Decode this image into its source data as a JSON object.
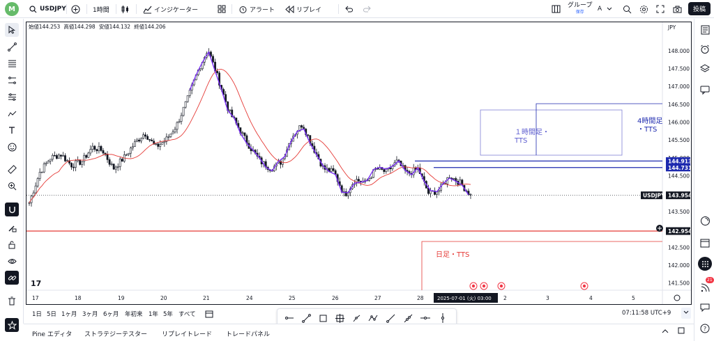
{
  "topbar": {
    "avatar_letter": "M",
    "symbol": "USDJPY",
    "interval": "1時間",
    "indicators": "インジケーター",
    "alert": "アラート",
    "replay": "リプレイ",
    "group": "グループ",
    "group_sub": "保存",
    "group_letter": "A",
    "publish": "投稿"
  },
  "ohlc": {
    "open": "始値144.253",
    "high": "高値144.298",
    "low": "安値144.132",
    "close": "終値144.206"
  },
  "price_axis": {
    "currency": "JPY",
    "ticks": [
      "148.000",
      "147.500",
      "147.000",
      "146.500",
      "146.000",
      "145.500",
      "145.000",
      "144.500",
      "143.500",
      "143.000",
      "142.500",
      "142.000",
      "141.500"
    ],
    "tick_values": [
      148.0,
      147.5,
      147.0,
      146.5,
      146.0,
      145.5,
      145.0,
      144.5,
      143.5,
      143.0,
      142.5,
      142.0,
      141.5
    ],
    "tags": [
      {
        "label": "144.913",
        "value": 144.913,
        "color": "#1e2aaf",
        "text_color": "#ffffff"
      },
      {
        "label": "144.731",
        "value": 144.731,
        "color": "#1e2aaf",
        "text_color": "#ffffff"
      },
      {
        "label": "USDJPY",
        "value": 143.954,
        "color": "#131722",
        "text_color": "#ffffff"
      },
      {
        "label": "143.954",
        "value": 143.954,
        "color": "#131722",
        "text_color": "#ffffff"
      },
      {
        "label": "142.954",
        "value": 142.954,
        "color": "#131722",
        "text_color": "#ffffff"
      }
    ]
  },
  "time_axis": {
    "labels": [
      "17",
      "18",
      "19",
      "20",
      "21",
      "24",
      "25",
      "26",
      "27",
      "28",
      "2",
      "3",
      "4",
      "5"
    ],
    "crosshair_label": "2025-07-01 (火)   03:00"
  },
  "annotations": {
    "h1_label": "１時間足・\nTTS",
    "h4_label": "4時間足\n・TTS",
    "daily_label": "日足・TTS"
  },
  "timeframes": [
    "1日",
    "5日",
    "1ヶ月",
    "3ヶ月",
    "6ヶ月",
    "年初来",
    "1年",
    "5年",
    "すべて"
  ],
  "clock": "07:11:58 UTC+9",
  "panel_tabs": [
    "Pine エディタ",
    "ストラテジーテスター",
    "リプレイトレード",
    "トレードパネル"
  ],
  "notification_count": "21",
  "colors": {
    "up": "#131722",
    "down": "#131722",
    "ma": "#e53935",
    "zigzag": "#7b2ff7",
    "level_blue": "#1e2aaf",
    "daily": "#e53935",
    "box_h1": "#7f7fd5"
  },
  "chart_data": {
    "type": "candlestick",
    "symbol": "USDJPY",
    "ylim": [
      141.3,
      148.6
    ],
    "x": [
      "17",
      "18",
      "19",
      "20",
      "21",
      "24",
      "25",
      "26",
      "27",
      "28",
      "2",
      "3",
      "4",
      "5"
    ],
    "last_price": 143.954,
    "horizontal_levels": [
      144.913,
      144.731,
      142.954
    ],
    "close_path": [
      143.75,
      144.6,
      145.0,
      145.1,
      144.8,
      144.9,
      145.3,
      145.2,
      144.7,
      145.0,
      145.4,
      145.7,
      145.3,
      145.5,
      145.9,
      146.6,
      147.4,
      148.05,
      147.2,
      146.3,
      145.8,
      145.3,
      144.9,
      144.7,
      144.9,
      145.6,
      145.95,
      145.3,
      144.7,
      144.6,
      143.95,
      144.4,
      144.3,
      144.7,
      144.6,
      144.9,
      144.55,
      144.7,
      144.0,
      144.1,
      144.5,
      144.3,
      143.954
    ]
  }
}
